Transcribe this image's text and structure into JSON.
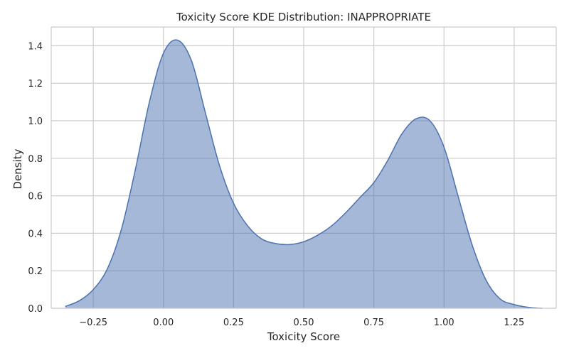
{
  "chart_data": {
    "type": "area",
    "title": "Toxicity Score KDE Distribution: INAPPROPRIATE",
    "xlabel": "Toxicity Score",
    "ylabel": "Density",
    "xlim": [
      -0.4,
      1.4
    ],
    "ylim": [
      0,
      1.5
    ],
    "xticks": [
      -0.25,
      0.0,
      0.25,
      0.5,
      0.75,
      1.0,
      1.25
    ],
    "xtick_labels": [
      "−0.25",
      "0.00",
      "0.25",
      "0.50",
      "0.75",
      "1.00",
      "1.25"
    ],
    "yticks": [
      0.0,
      0.2,
      0.4,
      0.6,
      0.8,
      1.0,
      1.2,
      1.4
    ],
    "ytick_labels": [
      "0.0",
      "0.2",
      "0.4",
      "0.6",
      "0.8",
      "1.0",
      "1.2",
      "1.4"
    ],
    "grid": true,
    "fill_color": "#4c72b0",
    "fill_opacity": 0.5,
    "x": [
      -0.35,
      -0.3,
      -0.25,
      -0.2,
      -0.15,
      -0.1,
      -0.05,
      0.0,
      0.05,
      0.1,
      0.15,
      0.2,
      0.25,
      0.3,
      0.35,
      0.4,
      0.45,
      0.5,
      0.55,
      0.6,
      0.65,
      0.7,
      0.75,
      0.8,
      0.85,
      0.9,
      0.95,
      1.0,
      1.05,
      1.1,
      1.15,
      1.2,
      1.25,
      1.3,
      1.35
    ],
    "y": [
      0.01,
      0.04,
      0.1,
      0.21,
      0.42,
      0.74,
      1.1,
      1.36,
      1.43,
      1.32,
      1.04,
      0.76,
      0.56,
      0.44,
      0.37,
      0.345,
      0.34,
      0.355,
      0.39,
      0.44,
      0.51,
      0.59,
      0.67,
      0.79,
      0.93,
      1.01,
      1.0,
      0.86,
      0.6,
      0.34,
      0.15,
      0.05,
      0.02,
      0.005,
      0.0
    ]
  }
}
